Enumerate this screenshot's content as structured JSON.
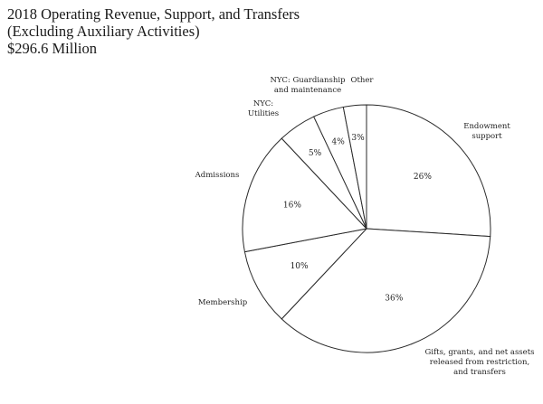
{
  "title_lines": [
    "2018 Operating Revenue, Support, and Transfers",
    "(Excluding Auxiliary Activities)",
    "$296.6 Million"
  ],
  "chart_data": {
    "type": "pie",
    "title": "2018 Operating Revenue, Support, and Transfers (Excluding Auxiliary Activities) $296.6 Million",
    "slices": [
      {
        "label": [
          "Endowment",
          "support"
        ],
        "value": 26,
        "value_label": "26%"
      },
      {
        "label": [
          "Gifts, grants, and net assets",
          "released from restriction,",
          "and transfers"
        ],
        "value": 36,
        "value_label": "36%"
      },
      {
        "label": [
          "Membership"
        ],
        "value": 10,
        "value_label": "10%"
      },
      {
        "label": [
          "Admissions"
        ],
        "value": 16,
        "value_label": "16%"
      },
      {
        "label": [
          "NYC:",
          "Utilities"
        ],
        "value": 5,
        "value_label": "5%"
      },
      {
        "label": [
          "NYC: Guardianship",
          "and maintenance"
        ],
        "value": 4,
        "value_label": "4%"
      },
      {
        "label": [
          "Other"
        ],
        "value": 3,
        "value_label": "3%"
      }
    ],
    "start": "12 o'clock",
    "direction": "clockwise",
    "legend": "none (labels placed outside slices)"
  }
}
